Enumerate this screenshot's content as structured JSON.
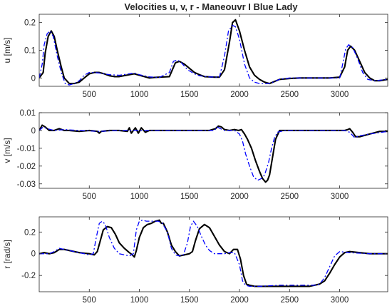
{
  "chart_data": {
    "title": "Velocities u, v, r  - Maneouvr I Blue Lady",
    "type": "line",
    "line_colors": {
      "measured": "#000000",
      "model": "#0000ff"
    },
    "line_styles": {
      "measured": "solid",
      "model": "dashdot"
    },
    "grid": false,
    "panels": [
      {
        "ylabel": "u [m/s]",
        "xlim": [
          0,
          3480
        ],
        "ylim": [
          -0.03,
          0.23
        ],
        "xticks": [
          500,
          1000,
          1500,
          2000,
          2500,
          3000
        ],
        "xtick_labels": [
          "500",
          "1000",
          "1500",
          "2000",
          "2500",
          "3000"
        ],
        "yticks": [
          0,
          0.1,
          0.2
        ],
        "ytick_labels": [
          "0",
          "0.1",
          "0.2"
        ],
        "series": [
          {
            "x": [
              0,
              40,
              60,
              90,
              120,
              150,
              180,
              220,
              250,
              300,
              350,
              400,
              450,
              500,
              550,
              600,
              650,
              700,
              750,
              800,
              900,
              950,
              1000,
              1050,
              1100,
              1150,
              1200,
              1300,
              1330,
              1360,
              1400,
              1450,
              1500,
              1550,
              1600,
              1650,
              1700,
              1750,
              1800,
              1850,
              1900,
              1930,
              1960,
              2000,
              2050,
              2100,
              2150,
              2200,
              2250,
              2300,
              2400,
              2500,
              2600,
              2700,
              2800,
              2900,
              3000,
              3050,
              3080,
              3110,
              3150,
              3200,
              3250,
              3300,
              3350,
              3400,
              3480
            ],
            "y": [
              0,
              0.02,
              0.09,
              0.15,
              0.17,
              0.15,
              0.1,
              0.04,
              0.0,
              -0.02,
              -0.02,
              -0.015,
              0.0,
              0.015,
              0.02,
              0.02,
              0.015,
              0.008,
              0.005,
              0.005,
              0.012,
              0.015,
              0.01,
              0.005,
              0.0,
              0.002,
              0.003,
              0.005,
              0.03,
              0.055,
              0.06,
              0.05,
              0.035,
              0.02,
              0.012,
              0.005,
              0.004,
              0.003,
              0.003,
              0.03,
              0.13,
              0.2,
              0.21,
              0.17,
              0.1,
              0.04,
              0.01,
              -0.005,
              -0.015,
              -0.02,
              -0.005,
              -0.002,
              0.0,
              0.0,
              0.0,
              0.0,
              0.003,
              0.04,
              0.1,
              0.115,
              0.1,
              0.06,
              0.02,
              0.0,
              -0.01,
              -0.01,
              -0.005
            ]
          },
          {
            "x": [
              0,
              30,
              50,
              80,
              110,
              140,
              180,
              220,
              260,
              300,
              350,
              400,
              450,
              500,
              550,
              600,
              700,
              800,
              900,
              950,
              1000,
              1100,
              1200,
              1300,
              1320,
              1340,
              1380,
              1420,
              1480,
              1550,
              1600,
              1700,
              1800,
              1850,
              1890,
              1930,
              1960,
              2000,
              2050,
              2100,
              2150,
              2200,
              2300,
              2400,
              2500,
              2700,
              2900,
              3000,
              3030,
              3060,
              3090,
              3130,
              3180,
              3230,
              3280,
              3350,
              3480
            ],
            "y": [
              0,
              0.05,
              0.12,
              0.16,
              0.17,
              0.15,
              0.08,
              0.02,
              -0.02,
              -0.025,
              -0.02,
              -0.01,
              0.01,
              0.02,
              0.02,
              0.018,
              0.012,
              0.01,
              0.015,
              0.018,
              0.012,
              0.004,
              0.002,
              0.02,
              0.04,
              0.06,
              0.065,
              0.055,
              0.03,
              0.015,
              0.008,
              0.004,
              0.003,
              0.08,
              0.17,
              0.19,
              0.185,
              0.14,
              0.05,
              0.0,
              -0.015,
              -0.02,
              -0.02,
              -0.005,
              0.0,
              0.0,
              0.0,
              0.0,
              0.05,
              0.105,
              0.12,
              0.11,
              0.07,
              0.02,
              -0.005,
              -0.01,
              -0.005
            ]
          }
        ]
      },
      {
        "ylabel": "v [m/s]",
        "xlim": [
          0,
          3480
        ],
        "ylim": [
          -0.0325,
          0.01
        ],
        "xticks": [
          500,
          1000,
          1500,
          2000,
          2500,
          3000
        ],
        "xtick_labels": [
          "500",
          "1000",
          "1500",
          "2000",
          "2500",
          "3000"
        ],
        "yticks": [
          -0.03,
          -0.02,
          -0.01,
          0,
          0.01
        ],
        "ytick_labels": [
          "-0.03",
          "-0.02",
          "-0.01",
          "0",
          "0.01"
        ],
        "series": [
          {
            "x": [
              0,
              30,
              60,
              100,
              150,
              200,
              250,
              300,
              400,
              500,
              580,
              600,
              620,
              700,
              800,
              880,
              900,
              920,
              960,
              990,
              1020,
              1060,
              1100,
              1200,
              1300,
              1400,
              1500,
              1600,
              1700,
              1760,
              1790,
              1820,
              1850,
              1900,
              1950,
              1990,
              2020,
              2050,
              2080,
              2120,
              2160,
              2200,
              2230,
              2260,
              2280,
              2300,
              2330,
              2360,
              2400,
              2450,
              2500,
              2600,
              2700,
              2800,
              2900,
              3000,
              3050,
              3080,
              3100,
              3130,
              3160,
              3200,
              3300,
              3400,
              3480
            ],
            "y": [
              0,
              0.003,
              0.002,
              0.0,
              0.0,
              0.001,
              0.0,
              0.0,
              -0.0005,
              0.0,
              -0.0005,
              -0.0015,
              -0.0005,
              0.0,
              0.0,
              -0.0005,
              0.0015,
              -0.0015,
              0.0015,
              -0.0015,
              0.0015,
              -0.001,
              0.0,
              0.0,
              0.0,
              0.0,
              0.0,
              0.0,
              0.0,
              0.001,
              0.0025,
              0.002,
              0.0005,
              0.0,
              0.0005,
              0.0,
              0.0005,
              -0.002,
              -0.005,
              -0.01,
              -0.017,
              -0.023,
              -0.027,
              -0.029,
              -0.028,
              -0.025,
              -0.015,
              -0.005,
              0.0,
              0.0,
              0.0,
              0.0,
              0.0,
              0.0,
              0.0,
              0.0,
              0.0,
              0.0005,
              0.001,
              -0.001,
              -0.0035,
              -0.0035,
              -0.002,
              -0.0005,
              -0.0005
            ]
          },
          {
            "x": [
              0,
              40,
              80,
              150,
              250,
              400,
              600,
              800,
              1000,
              1200,
              1400,
              1600,
              1750,
              1780,
              1810,
              1850,
              1950,
              2000,
              2030,
              2060,
              2100,
              2140,
              2180,
              2220,
              2250,
              2290,
              2320,
              2350,
              2380,
              2450,
              2600,
              2800,
              3000,
              3050,
              3100,
              3150,
              3200,
              3300,
              3480
            ],
            "y": [
              0,
              0.002,
              0.001,
              0.0,
              0.0005,
              0.0,
              -0.0005,
              0.0,
              0.0,
              0.0,
              0.0,
              0.0,
              0.0,
              0.002,
              0.001,
              0.0,
              0.0,
              -0.002,
              -0.006,
              -0.013,
              -0.02,
              -0.026,
              -0.028,
              -0.027,
              -0.025,
              -0.018,
              -0.01,
              -0.004,
              -0.001,
              0.0,
              0.0,
              0.0,
              0.0,
              0.0,
              -0.001,
              -0.004,
              -0.003,
              -0.002,
              -0.0005
            ]
          }
        ]
      },
      {
        "ylabel": "r [rad/s]",
        "xlim": [
          0,
          3480
        ],
        "ylim": [
          -0.35,
          0.34
        ],
        "xticks": [
          500,
          1000,
          1500,
          2000,
          2500,
          3000
        ],
        "xtick_labels": [
          "500",
          "1000",
          "1500",
          "2000",
          "2500",
          "3000"
        ],
        "yticks": [
          -0.2,
          0,
          0.2
        ],
        "ytick_labels": [
          "-0.2",
          "0",
          "0.2"
        ],
        "series": [
          {
            "x": [
              0,
              50,
              100,
              150,
              200,
              250,
              300,
              350,
              400,
              450,
              500,
              550,
              580,
              610,
              640,
              680,
              720,
              760,
              800,
              850,
              900,
              930,
              950,
              970,
              1000,
              1040,
              1080,
              1120,
              1160,
              1200,
              1220,
              1240,
              1280,
              1320,
              1360,
              1400,
              1450,
              1500,
              1530,
              1560,
              1600,
              1650,
              1700,
              1750,
              1800,
              1850,
              1900,
              1940,
              1980,
              2010,
              2040,
              2070,
              2100,
              2150,
              2200,
              2300,
              2400,
              2500,
              2600,
              2700,
              2800,
              2850,
              2900,
              2950,
              3000,
              3050,
              3100,
              3200,
              3300,
              3400,
              3480
            ],
            "y": [
              0,
              0.01,
              0.0,
              0.01,
              0.04,
              0.04,
              0.03,
              0.02,
              0.01,
              0.005,
              0.0,
              -0.01,
              0.02,
              0.12,
              0.22,
              0.25,
              0.24,
              0.18,
              0.1,
              0.05,
              0.01,
              -0.01,
              -0.03,
              0.03,
              0.15,
              0.24,
              0.27,
              0.28,
              0.3,
              0.31,
              0.28,
              0.28,
              0.2,
              0.08,
              0.02,
              -0.02,
              -0.01,
              0.0,
              0.02,
              0.12,
              0.23,
              0.27,
              0.24,
              0.16,
              0.08,
              0.02,
              0.0,
              0.04,
              0.04,
              -0.05,
              -0.2,
              -0.28,
              -0.29,
              -0.3,
              -0.3,
              -0.3,
              -0.3,
              -0.3,
              -0.3,
              -0.3,
              -0.28,
              -0.25,
              -0.18,
              -0.1,
              -0.03,
              0.01,
              0.02,
              0.01,
              0.0,
              0.0,
              0.0
            ]
          },
          {
            "x": [
              0,
              50,
              100,
              150,
              200,
              250,
              300,
              350,
              400,
              450,
              500,
              540,
              570,
              600,
              630,
              660,
              700,
              750,
              800,
              850,
              900,
              940,
              970,
              1000,
              1030,
              1070,
              1110,
              1150,
              1190,
              1230,
              1280,
              1320,
              1360,
              1400,
              1440,
              1480,
              1510,
              1540,
              1580,
              1620,
              1660,
              1700,
              1750,
              1800,
              1850,
              1900,
              1950,
              2000,
              2030,
              2060,
              2100,
              2200,
              2400,
              2600,
              2750,
              2800,
              2850,
              2900,
              2950,
              3000,
              3100,
              3300,
              3480
            ],
            "y": [
              0,
              0.0,
              0.0,
              0.02,
              0.05,
              0.04,
              0.03,
              0.02,
              0.01,
              0.0,
              -0.01,
              0.0,
              0.15,
              0.28,
              0.3,
              0.27,
              0.15,
              0.05,
              0.0,
              -0.01,
              -0.02,
              0.0,
              0.22,
              0.3,
              0.31,
              0.3,
              0.3,
              0.3,
              0.3,
              0.28,
              0.2,
              0.05,
              -0.01,
              -0.02,
              -0.01,
              0.1,
              0.25,
              0.3,
              0.25,
              0.16,
              0.08,
              0.03,
              0.0,
              0.0,
              0.0,
              0.01,
              0.01,
              -0.1,
              -0.25,
              -0.29,
              -0.3,
              -0.3,
              -0.29,
              -0.29,
              -0.29,
              -0.28,
              -0.22,
              -0.12,
              -0.02,
              0.02,
              0.01,
              0.0,
              0.0
            ]
          }
        ]
      }
    ]
  }
}
